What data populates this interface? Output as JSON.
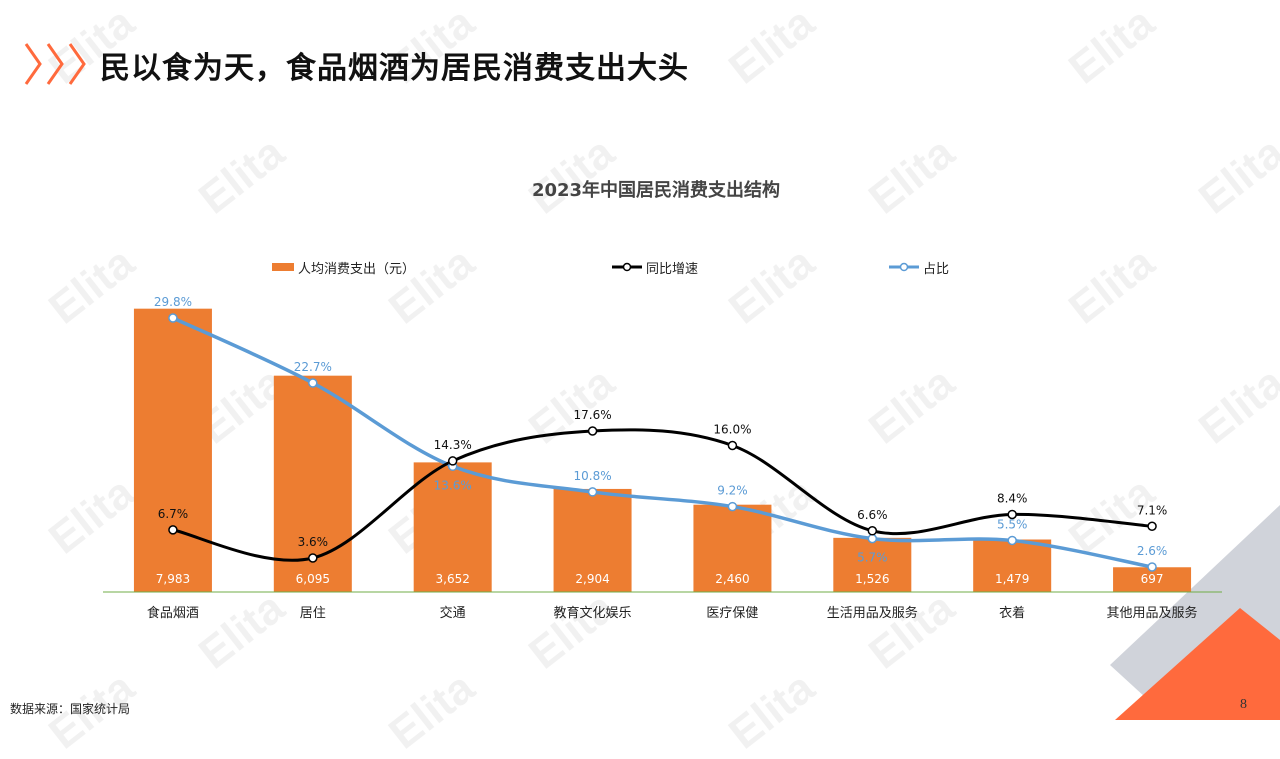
{
  "header": {
    "title": "民以食为天，食品烟酒为居民消费支出大头"
  },
  "watermark": {
    "text": "Elita"
  },
  "footer": {
    "source": "数据来源：国家统计局",
    "page_number": "8"
  },
  "colors": {
    "accent": "#ED7D31",
    "bar": "#ED7D31",
    "growth_line": "#000000",
    "share_line": "#5B9BD5",
    "corner_orange": "#FF6A3D",
    "corner_gray": "#D0D3DA",
    "axis": "#70AD47"
  },
  "chart_data": {
    "type": "bar",
    "title": "2023年中国居民消费支出结构",
    "categories": [
      "食品烟酒",
      "居住",
      "交通",
      "教育文化娱乐",
      "医疗保健",
      "生活用品及服务",
      "衣着",
      "其他用品及服务"
    ],
    "series": [
      {
        "name": "人均消费支出（元）",
        "type": "bar",
        "values": [
          7983,
          6095,
          3652,
          2904,
          2460,
          1526,
          1479,
          697
        ],
        "labels": [
          "7,983",
          "6,095",
          "3,652",
          "2,904",
          "2,460",
          "1,526",
          "1,479",
          "697"
        ]
      },
      {
        "name": "同比增速",
        "type": "line",
        "values": [
          6.7,
          3.6,
          14.3,
          17.6,
          16.0,
          6.6,
          8.4,
          7.1
        ],
        "labels": [
          "6.7%",
          "3.6%",
          "14.3%",
          "17.6%",
          "16.0%",
          "6.6%",
          "8.4%",
          "7.1%"
        ]
      },
      {
        "name": "占比",
        "type": "line",
        "values": [
          29.8,
          22.7,
          13.6,
          10.8,
          9.2,
          5.7,
          5.5,
          2.6
        ],
        "labels": [
          "29.8%",
          "22.7%",
          "13.6%",
          "10.8%",
          "9.2%",
          "5.7%",
          "5.5%",
          "2.6%"
        ]
      }
    ],
    "legend": "top",
    "grid": false
  }
}
